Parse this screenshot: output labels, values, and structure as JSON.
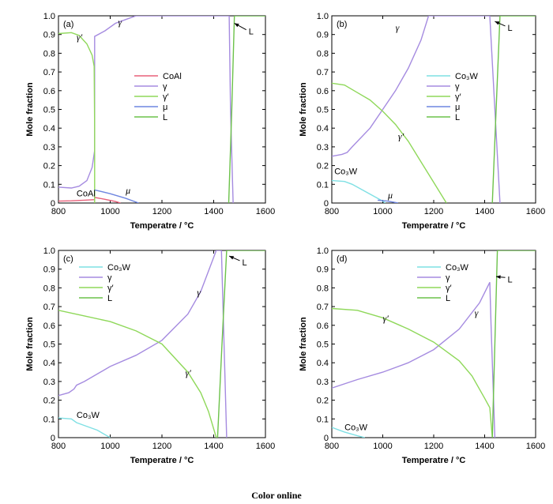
{
  "figure": {
    "footer": "Color online",
    "colors": {
      "CoAl": "#e8607a",
      "gamma": "#a58be0",
      "gamma_prime": "#8fd85a",
      "mu": "#6f86e0",
      "L": "#6cc24a",
      "Co3W": "#7fe0e4"
    }
  },
  "chart_data": [
    {
      "type": "line",
      "panel": "(a)",
      "xlabel": "Temperatre / °C",
      "ylabel": "Mole fraction",
      "xlim": [
        800,
        1600
      ],
      "ylim": [
        0,
        1.0
      ],
      "xticks": [
        800,
        1000,
        1200,
        1400,
        1600
      ],
      "yticks": [
        0,
        0.1,
        0.2,
        0.3,
        0.4,
        0.5,
        0.6,
        0.7,
        0.8,
        0.9,
        1.0
      ],
      "legend": {
        "placement": "center-right",
        "entries": [
          "CoAl",
          "γ",
          "γ′",
          "μ",
          "L"
        ]
      },
      "annotations": [
        {
          "text": "γ′",
          "x": 870,
          "y": 0.87
        },
        {
          "text": "γ",
          "x": 1030,
          "y": 0.95
        },
        {
          "text": "CoAl",
          "x": 870,
          "y": 0.035
        },
        {
          "text": "μ",
          "x": 1060,
          "y": 0.05
        },
        {
          "text": "L",
          "x": 1535,
          "y": 0.9,
          "arrow_to": [
            1480,
            0.96
          ]
        }
      ],
      "series": [
        {
          "name": "CoAl",
          "color": "CoAl",
          "x": [
            800,
            850,
            900,
            940,
            940,
            980,
            1020,
            1040
          ],
          "y": [
            0.01,
            0.012,
            0.015,
            0.018,
            0.03,
            0.02,
            0.008,
            0.0
          ]
        },
        {
          "name": "γ",
          "color": "gamma",
          "x": [
            800,
            850,
            880,
            910,
            930,
            940,
            940,
            980,
            1020,
            1060,
            1100,
            1460,
            1465,
            1475
          ],
          "y": [
            0.085,
            0.08,
            0.09,
            0.12,
            0.19,
            0.28,
            0.89,
            0.92,
            0.96,
            0.98,
            1.0,
            1.0,
            0.5,
            0.0
          ]
        },
        {
          "name": "γ′",
          "color": "gamma_prime",
          "x": [
            800,
            850,
            880,
            910,
            930,
            938,
            940,
            940
          ],
          "y": [
            0.905,
            0.91,
            0.895,
            0.85,
            0.79,
            0.73,
            0.4,
            0.0
          ]
        },
        {
          "name": "μ",
          "color": "mu",
          "x": [
            940,
            1000,
            1060,
            1110
          ],
          "y": [
            0.07,
            0.05,
            0.025,
            0.0
          ]
        },
        {
          "name": "L",
          "color": "L",
          "x": [
            1458,
            1470,
            1480,
            1600
          ],
          "y": [
            0.0,
            0.5,
            1.0,
            1.0
          ]
        }
      ]
    },
    {
      "type": "line",
      "panel": "(b)",
      "xlabel": "Temperatre / °C",
      "ylabel": "Mole fraction",
      "xlim": [
        800,
        1600
      ],
      "ylim": [
        0,
        1.0
      ],
      "xticks": [
        800,
        1000,
        1200,
        1400,
        1600
      ],
      "yticks": [
        0,
        0.1,
        0.2,
        0.3,
        0.4,
        0.5,
        0.6,
        0.7,
        0.8,
        0.9,
        1.0
      ],
      "legend": {
        "placement": "center-right",
        "entries": [
          "Co₃W",
          "γ",
          "γ′",
          "μ",
          "L"
        ]
      },
      "annotations": [
        {
          "text": "γ",
          "x": 1050,
          "y": 0.92
        },
        {
          "text": "γ′",
          "x": 1060,
          "y": 0.34
        },
        {
          "text": "Co₃W",
          "x": 810,
          "y": 0.155
        },
        {
          "text": "μ",
          "x": 1020,
          "y": 0.025
        },
        {
          "text": "L",
          "x": 1490,
          "y": 0.92,
          "arrow_to": [
            1440,
            0.97
          ]
        }
      ],
      "series": [
        {
          "name": "Co₃W",
          "color": "Co3W",
          "x": [
            800,
            850,
            880,
            920,
            960,
            1000,
            1010
          ],
          "y": [
            0.12,
            0.115,
            0.1,
            0.07,
            0.04,
            0.01,
            0.0
          ]
        },
        {
          "name": "γ",
          "color": "gamma",
          "x": [
            800,
            840,
            860,
            880,
            950,
            1000,
            1050,
            1100,
            1150,
            1180,
            1420,
            1440,
            1460
          ],
          "y": [
            0.25,
            0.26,
            0.27,
            0.3,
            0.4,
            0.5,
            0.6,
            0.72,
            0.87,
            1.0,
            1.0,
            0.5,
            0.0
          ]
        },
        {
          "name": "γ′",
          "color": "gamma_prime",
          "x": [
            800,
            850,
            900,
            950,
            1000,
            1050,
            1100,
            1150,
            1200,
            1250
          ],
          "y": [
            0.64,
            0.63,
            0.59,
            0.55,
            0.49,
            0.42,
            0.33,
            0.22,
            0.11,
            0.0
          ]
        },
        {
          "name": "μ",
          "color": "mu",
          "x": [
            980,
            1020,
            1060
          ],
          "y": [
            0.015,
            0.01,
            0.0
          ]
        },
        {
          "name": "L",
          "color": "L",
          "x": [
            1430,
            1445,
            1460,
            1600
          ],
          "y": [
            0.0,
            0.5,
            1.0,
            1.0
          ]
        }
      ]
    },
    {
      "type": "line",
      "panel": "(c)",
      "xlabel": "Temperatre / °C",
      "ylabel": "Mole fraction",
      "xlim": [
        800,
        1600
      ],
      "ylim": [
        0,
        1.0
      ],
      "xticks": [
        800,
        1000,
        1200,
        1400,
        1600
      ],
      "yticks": [
        0,
        0.1,
        0.2,
        0.3,
        0.4,
        0.5,
        0.6,
        0.7,
        0.8,
        0.9,
        1.0
      ],
      "legend": {
        "placement": "top-left",
        "entries": [
          "Co₃W",
          "γ",
          "γ′",
          "L"
        ]
      },
      "annotations": [
        {
          "text": "γ",
          "x": 1335,
          "y": 0.76
        },
        {
          "text": "γ′",
          "x": 1290,
          "y": 0.33
        },
        {
          "text": "Co₃W",
          "x": 870,
          "y": 0.105
        },
        {
          "text": "L",
          "x": 1510,
          "y": 0.92,
          "arrow_to": [
            1460,
            0.97
          ]
        }
      ],
      "series": [
        {
          "name": "Co₃W",
          "color": "Co3W",
          "x": [
            800,
            850,
            870,
            900,
            950,
            1000
          ],
          "y": [
            0.105,
            0.1,
            0.08,
            0.065,
            0.04,
            0.0
          ]
        },
        {
          "name": "γ",
          "color": "gamma",
          "x": [
            800,
            840,
            860,
            870,
            900,
            1000,
            1100,
            1200,
            1300,
            1350,
            1410,
            1430,
            1440,
            1450
          ],
          "y": [
            0.225,
            0.24,
            0.26,
            0.28,
            0.3,
            0.38,
            0.44,
            0.52,
            0.66,
            0.78,
            1.0,
            1.0,
            0.5,
            0.0
          ]
        },
        {
          "name": "γ′",
          "color": "gamma_prime",
          "x": [
            800,
            900,
            1000,
            1100,
            1200,
            1300,
            1350,
            1380,
            1410
          ],
          "y": [
            0.68,
            0.65,
            0.62,
            0.57,
            0.5,
            0.35,
            0.24,
            0.14,
            0.0
          ]
        },
        {
          "name": "L",
          "color": "L",
          "x": [
            1415,
            1432,
            1450,
            1600
          ],
          "y": [
            0.0,
            0.5,
            1.0,
            1.0
          ]
        }
      ]
    },
    {
      "type": "line",
      "panel": "(d)",
      "xlabel": "Temperatre / °C",
      "ylabel": "Mole fraction",
      "xlim": [
        800,
        1600
      ],
      "ylim": [
        0,
        1.0
      ],
      "xticks": [
        800,
        1000,
        1200,
        1400,
        1600
      ],
      "yticks": [
        0,
        0.1,
        0.2,
        0.3,
        0.4,
        0.5,
        0.6,
        0.7,
        0.8,
        0.9,
        1.0
      ],
      "legend": {
        "placement": "top-left",
        "entries": [
          "Co₃W",
          "γ",
          "γ′",
          "L"
        ]
      },
      "annotations": [
        {
          "text": "γ′",
          "x": 1000,
          "y": 0.62
        },
        {
          "text": "γ",
          "x": 1360,
          "y": 0.65
        },
        {
          "text": "Co₃W",
          "x": 850,
          "y": 0.04
        },
        {
          "text": "L",
          "x": 1490,
          "y": 0.83,
          "arrow_to": [
            1445,
            0.86
          ]
        }
      ],
      "series": [
        {
          "name": "Co₃W",
          "color": "Co3W",
          "x": [
            800,
            850,
            900,
            930
          ],
          "y": [
            0.055,
            0.03,
            0.01,
            0.0
          ]
        },
        {
          "name": "γ",
          "color": "gamma",
          "x": [
            800,
            900,
            1000,
            1100,
            1200,
            1300,
            1380,
            1420,
            1425,
            1440
          ],
          "y": [
            0.265,
            0.31,
            0.35,
            0.4,
            0.47,
            0.58,
            0.72,
            0.83,
            0.6,
            0.0
          ]
        },
        {
          "name": "γ′",
          "color": "gamma_prime",
          "x": [
            800,
            900,
            1000,
            1100,
            1200,
            1300,
            1350,
            1400,
            1420,
            1430
          ],
          "y": [
            0.69,
            0.68,
            0.64,
            0.58,
            0.51,
            0.41,
            0.33,
            0.21,
            0.16,
            0.0
          ]
        },
        {
          "name": "L",
          "color": "L",
          "x": [
            1430,
            1440,
            1450,
            1600
          ],
          "y": [
            0.0,
            0.5,
            1.0,
            1.0
          ]
        }
      ]
    }
  ]
}
